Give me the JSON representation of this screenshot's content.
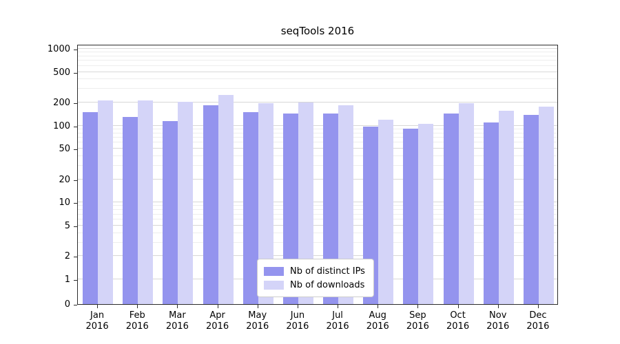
{
  "chart_data": {
    "type": "bar",
    "title": "seqTools 2016",
    "categories": [
      "Jan 2016",
      "Feb 2016",
      "Mar 2016",
      "Apr 2016",
      "May 2016",
      "Jun 2016",
      "Jul 2016",
      "Aug 2016",
      "Sep 2016",
      "Oct 2016",
      "Nov 2016",
      "Dec 2016"
    ],
    "series": [
      {
        "name": "Nb of distinct IPs",
        "color": "#9494ee",
        "values": [
          150,
          131,
          116,
          183,
          150,
          144,
          145,
          97,
          92,
          145,
          110,
          138
        ]
      },
      {
        "name": "Nb of downloads",
        "color": "#d4d4f8",
        "values": [
          215,
          215,
          204,
          251,
          195,
          200,
          186,
          120,
          106,
          197,
          155,
          176
        ]
      }
    ],
    "y_scale": "log",
    "y_ticks": [
      0,
      1,
      2,
      5,
      10,
      20,
      50,
      100,
      200,
      500,
      1000
    ],
    "ylim": [
      0,
      1000
    ],
    "xlabel": "",
    "ylabel": "",
    "grid": "on",
    "legend_position": "lower center"
  }
}
